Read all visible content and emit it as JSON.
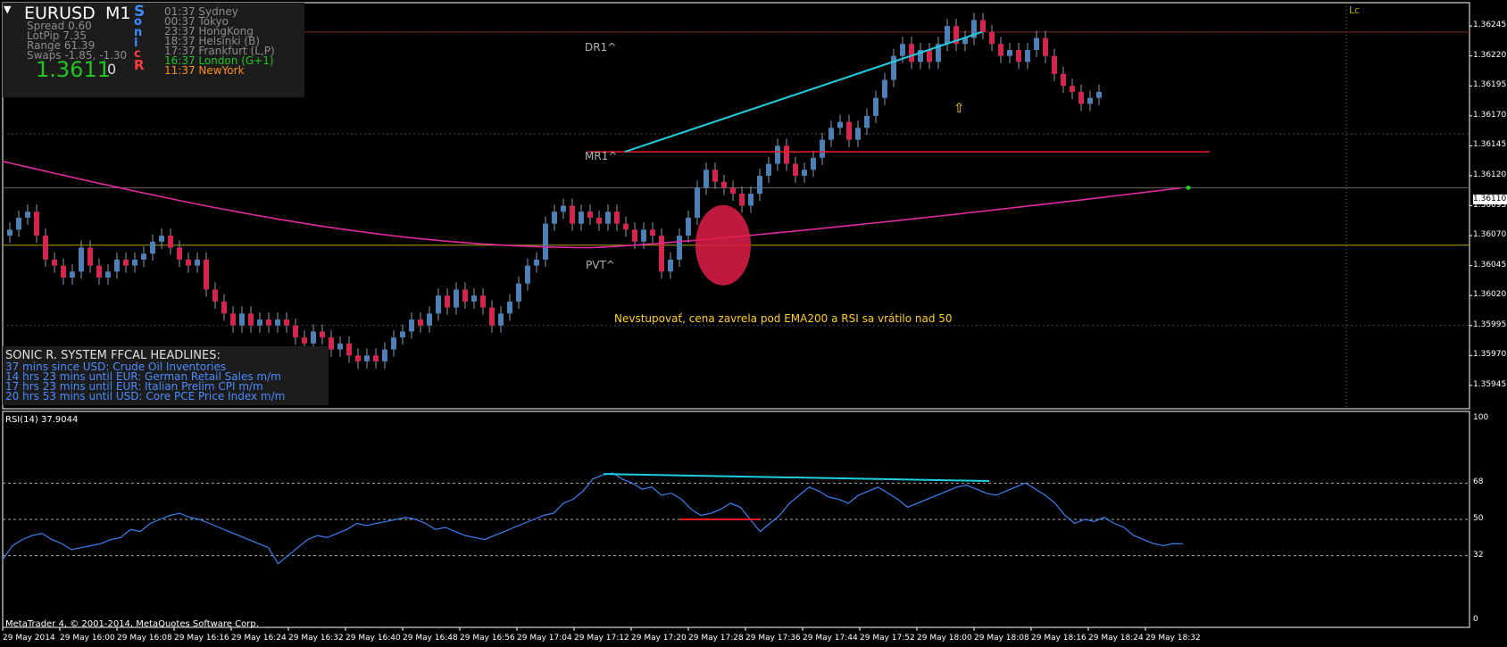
{
  "header": {
    "symbol": "EURUSD",
    "timeframe": "M1",
    "stats": [
      "Spread 0.60",
      "LotPip 7.35",
      "Range 61.39",
      "Swaps -1.85, -1.30"
    ],
    "price": "1.3611",
    "price_extra": "0",
    "sonic_letters": [
      "S",
      "o",
      "n",
      "i",
      "c",
      "R"
    ],
    "sonic_colors": [
      "#3c8cff",
      "#3c8cff",
      "#3c8cff",
      "#3c8cff",
      "#ff3c3c",
      "#ff3c3c"
    ],
    "sessions": [
      {
        "text": "01:37 Sydney",
        "color": "#8c8c8c"
      },
      {
        "text": "00:37 Tokyo",
        "color": "#8c8c8c"
      },
      {
        "text": "23:37 HongKong",
        "color": "#8c8c8c"
      },
      {
        "text": "18:37 Helsinki  (B)",
        "color": "#8c8c8c"
      },
      {
        "text": "17:37 Frankfurt  (L,P)",
        "color": "#8c8c8c"
      },
      {
        "text": "16:37 London  (G+1)",
        "color": "#22c322"
      },
      {
        "text": "11:37 NewYork",
        "color": "#ff8c1a"
      }
    ]
  },
  "news": {
    "title": "SONIC R. SYSTEM  FFCAL HEADLINES:",
    "items": [
      "37 mins since USD: Crude Oil Inventories",
      "14 hrs 23 mins until EUR: German Retail Sales m/m",
      "17 hrs 23 mins until EUR: Italian Prelim CPI m/m",
      "20 hrs 53 mins until USD: Core PCE Price Index m/m"
    ]
  },
  "levels": {
    "dr1": "DR1^",
    "mr1": "MR1^",
    "pvt": "PVT^"
  },
  "annotation": "Nevstupovať, cena zavrela pod EMA200 a RSI sa vrátilo nad 50",
  "lc_label": "Lc",
  "current_price_label": "1.36110",
  "rsi_label": "RSI(14) 37.9044",
  "copyright": "MetaTrader 4, © 2001-2014, MetaQuotes Software Corp.",
  "icons": {
    "signal": "arrow-up-icon",
    "signal_glyph": "⇧"
  },
  "chart_data": [
    {
      "type": "candlestick",
      "title": "",
      "y_ticks": [
        "1.36245",
        "1.36220",
        "1.36195",
        "1.36170",
        "1.36145",
        "1.36120",
        "1.36095",
        "1.36070",
        "1.36045",
        "1.36020",
        "1.35995",
        "1.35970",
        "1.35945"
      ],
      "ylim": [
        1.3593,
        1.3626
      ],
      "x_ticks": [
        "29 May 2014",
        "29 May 16:00",
        "29 May 16:08",
        "29 May 16:16",
        "29 May 16:24",
        "29 May 16:32",
        "29 May 16:40",
        "29 May 16:48",
        "29 May 16:56",
        "29 May 17:04",
        "29 May 17:12",
        "29 May 17:20",
        "29 May 17:28",
        "29 May 17:36",
        "29 May 17:44",
        "29 May 17:52",
        "29 May 18:00",
        "29 May 18:08",
        "29 May 18:16",
        "29 May 18:24",
        "29 May 18:32"
      ],
      "levels": {
        "DR1": 1.3624,
        "MR1": 1.3614,
        "PVT": 1.36062,
        "EMA200_last": 1.3611
      },
      "close_start": 1.3607,
      "close_steps": [
        0.5,
        1,
        0.5,
        -2,
        -2,
        -0.5,
        -1,
        0.5,
        2,
        -1.5,
        -1,
        0.5,
        1,
        -0.5,
        0.5,
        0.5,
        1,
        0.5,
        -1,
        -1,
        -0.5,
        0.5,
        -2.5,
        -1,
        -1,
        -1,
        1,
        -1,
        0.5,
        -0.5,
        0.5,
        -0.5,
        -1,
        -0.5,
        1,
        -0.5,
        -1,
        0.5,
        -1,
        -0.5,
        0.5,
        -0.5,
        1,
        1,
        0.5,
        1,
        -0.5,
        1,
        1.5,
        -1,
        1.5,
        -1,
        0.5,
        -1,
        -1.5,
        1,
        1,
        1.5,
        1.5,
        0.5,
        3,
        1,
        0.5,
        -1.5,
        1,
        -0.5,
        -0.5,
        1,
        -1,
        -0.5,
        -1,
        1,
        -0.5,
        -3,
        1,
        2,
        1.5,
        2.5,
        1.5,
        -1,
        -0.5,
        -0.5,
        -1,
        1,
        1.5,
        1,
        1.5,
        -1.5,
        -1,
        0.5,
        1,
        1.5,
        1,
        0.5,
        -1.5,
        1,
        1,
        1.5,
        1.5,
        2,
        1,
        -1.5,
        1,
        -1,
        1.5,
        1.5,
        -1.5,
        0.5,
        1.5,
        -1,
        -1,
        -1,
        0.5,
        -1,
        1,
        1,
        -1.5,
        -1.5,
        -1,
        -0.5,
        -1,
        0.5,
        0.5
      ],
      "current_price": 1.3611
    },
    {
      "type": "line",
      "title": "RSI(14)",
      "y_ticks": [
        "100",
        "68",
        "50",
        "32",
        "0"
      ],
      "ylim": [
        0,
        100
      ],
      "levels": [
        68,
        50,
        32
      ],
      "last_value": 37.9044,
      "values": [
        30,
        37,
        40,
        42,
        43,
        40,
        38,
        35,
        36,
        37,
        38,
        40,
        41,
        45,
        44,
        48,
        50,
        52,
        53,
        51,
        50,
        48,
        46,
        44,
        42,
        40,
        38,
        36,
        28,
        32,
        36,
        40,
        42,
        41,
        43,
        45,
        48,
        47,
        48,
        49,
        50,
        51,
        50,
        48,
        45,
        46,
        44,
        42,
        41,
        40,
        42,
        44,
        46,
        48,
        50,
        52,
        53,
        58,
        60,
        64,
        70,
        72,
        73,
        70,
        68,
        65,
        66,
        62,
        63,
        60,
        55,
        52,
        53,
        55,
        58,
        56,
        50,
        44,
        48,
        52,
        58,
        62,
        66,
        64,
        61,
        60,
        58,
        62,
        64,
        66,
        63,
        60,
        56,
        58,
        60,
        62,
        64,
        66,
        67,
        65,
        63,
        62,
        64,
        66,
        68,
        65,
        62,
        58,
        52,
        48,
        50,
        49,
        51,
        48,
        46,
        42,
        40,
        38,
        37,
        38,
        37.9
      ]
    }
  ]
}
